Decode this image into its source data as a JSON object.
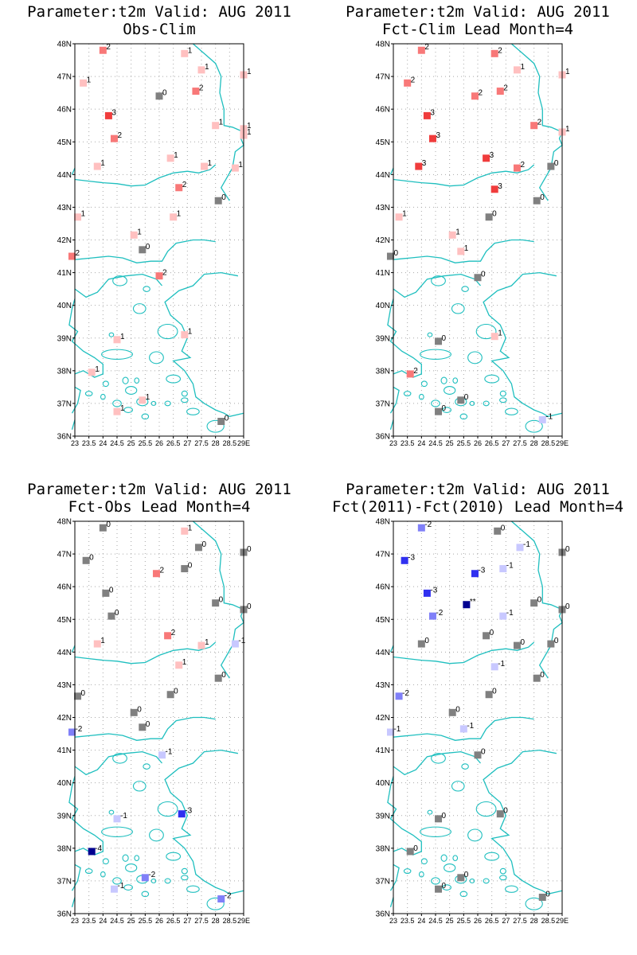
{
  "lat_labels": [
    "36N",
    "37N",
    "38N",
    "39N",
    "40N",
    "41N",
    "42N",
    "43N",
    "44N",
    "45N",
    "46N",
    "47N",
    "48N"
  ],
  "lon_labels": [
    "23",
    "23.5",
    "24",
    "24.5",
    "25",
    "25.5",
    "26",
    "26.5",
    "27",
    "27.5",
    "28",
    "28.5",
    "29E"
  ],
  "colors": {
    "coast": "#1fbfbf",
    "zero": "#808080",
    "pos1": "#ffc0c0",
    "pos2": "#f87878",
    "pos3": "#f03c3c",
    "neg1": "#c8c8ff",
    "neg2": "#8080f8",
    "neg3": "#3030f0",
    "neg4": "#000090"
  },
  "panels": [
    {
      "title": "Parameter:t2m Valid: AUG 2011",
      "subtitle": "Obs-Clim",
      "stations": [
        {
          "lon": 24.0,
          "lat": 47.8,
          "label": "2",
          "value": 2
        },
        {
          "lon": 26.9,
          "lat": 47.7,
          "label": "1",
          "value": 1
        },
        {
          "lon": 27.5,
          "lat": 47.2,
          "label": "1",
          "value": 1
        },
        {
          "lon": 29.0,
          "lat": 47.05,
          "label": "1",
          "value": 1
        },
        {
          "lon": 23.3,
          "lat": 46.8,
          "label": "1",
          "value": 1
        },
        {
          "lon": 26.0,
          "lat": 46.4,
          "label": "0",
          "value": 0
        },
        {
          "lon": 27.3,
          "lat": 46.55,
          "label": "2",
          "value": 2
        },
        {
          "lon": 24.2,
          "lat": 45.8,
          "label": "3",
          "value": 3
        },
        {
          "lon": 29.0,
          "lat": 45.4,
          "label": "1",
          "value": 1
        },
        {
          "lon": 28.0,
          "lat": 45.5,
          "label": "1",
          "value": 1
        },
        {
          "lon": 24.4,
          "lat": 45.1,
          "label": "2",
          "value": 2
        },
        {
          "lon": 29.0,
          "lat": 45.2,
          "label": "1",
          "value": 1
        },
        {
          "lon": 23.8,
          "lat": 44.25,
          "label": "1",
          "value": 1
        },
        {
          "lon": 26.4,
          "lat": 44.5,
          "label": "1",
          "value": 1
        },
        {
          "lon": 27.6,
          "lat": 44.25,
          "label": "1",
          "value": 1
        },
        {
          "lon": 28.7,
          "lat": 44.2,
          "label": "1",
          "value": 1
        },
        {
          "lon": 26.7,
          "lat": 43.6,
          "label": "2",
          "value": 2
        },
        {
          "lon": 28.1,
          "lat": 43.2,
          "label": "0",
          "value": 0
        },
        {
          "lon": 23.1,
          "lat": 42.7,
          "label": "1",
          "value": 1
        },
        {
          "lon": 26.5,
          "lat": 42.7,
          "label": "1",
          "value": 1
        },
        {
          "lon": 25.1,
          "lat": 42.15,
          "label": "1",
          "value": 1
        },
        {
          "lon": 25.4,
          "lat": 41.7,
          "label": "0",
          "value": 0
        },
        {
          "lon": 22.9,
          "lat": 41.5,
          "label": "2",
          "value": 2
        },
        {
          "lon": 26.0,
          "lat": 40.9,
          "label": "2",
          "value": 2
        },
        {
          "lon": 24.5,
          "lat": 38.95,
          "label": "1",
          "value": 1
        },
        {
          "lon": 26.9,
          "lat": 39.1,
          "label": "1",
          "value": 1
        },
        {
          "lon": 23.6,
          "lat": 37.95,
          "label": "1",
          "value": 1
        },
        {
          "lon": 25.4,
          "lat": 37.1,
          "label": "1",
          "value": 1
        },
        {
          "lon": 24.5,
          "lat": 36.75,
          "label": "1",
          "value": 1
        },
        {
          "lon": 28.2,
          "lat": 36.45,
          "label": "0",
          "value": 0
        }
      ]
    },
    {
      "title": "Parameter:t2m Valid: AUG 2011",
      "subtitle": "Fct-Clim Lead Month=4",
      "stations": [
        {
          "lon": 24.0,
          "lat": 47.8,
          "label": "2",
          "value": 2
        },
        {
          "lon": 26.6,
          "lat": 47.7,
          "label": "2",
          "value": 2
        },
        {
          "lon": 27.4,
          "lat": 47.2,
          "label": "1",
          "value": 1
        },
        {
          "lon": 29.0,
          "lat": 47.05,
          "label": "1",
          "value": 1
        },
        {
          "lon": 23.5,
          "lat": 46.8,
          "label": "2",
          "value": 2
        },
        {
          "lon": 25.9,
          "lat": 46.4,
          "label": "2",
          "value": 2
        },
        {
          "lon": 26.8,
          "lat": 46.55,
          "label": "2",
          "value": 2
        },
        {
          "lon": 24.2,
          "lat": 45.8,
          "label": "3",
          "value": 3
        },
        {
          "lon": 28.0,
          "lat": 45.5,
          "label": "2",
          "value": 2
        },
        {
          "lon": 29.0,
          "lat": 45.3,
          "label": "1",
          "value": 1
        },
        {
          "lon": 24.4,
          "lat": 45.1,
          "label": "3",
          "value": 3
        },
        {
          "lon": 23.9,
          "lat": 44.25,
          "label": "3",
          "value": 3
        },
        {
          "lon": 26.3,
          "lat": 44.5,
          "label": "3",
          "value": 3
        },
        {
          "lon": 27.4,
          "lat": 44.2,
          "label": "2",
          "value": 2
        },
        {
          "lon": 28.6,
          "lat": 44.25,
          "label": "0",
          "value": 0
        },
        {
          "lon": 26.6,
          "lat": 43.55,
          "label": "3",
          "value": 3
        },
        {
          "lon": 28.1,
          "lat": 43.2,
          "label": "0",
          "value": 0
        },
        {
          "lon": 23.2,
          "lat": 42.7,
          "label": "1",
          "value": 1
        },
        {
          "lon": 26.4,
          "lat": 42.7,
          "label": "0",
          "value": 0
        },
        {
          "lon": 25.1,
          "lat": 42.15,
          "label": "1",
          "value": 1
        },
        {
          "lon": 25.4,
          "lat": 41.65,
          "label": "1",
          "value": 1
        },
        {
          "lon": 22.9,
          "lat": 41.5,
          "label": "0",
          "value": 0
        },
        {
          "lon": 26.0,
          "lat": 40.85,
          "label": "0",
          "value": 0
        },
        {
          "lon": 24.6,
          "lat": 38.9,
          "label": "0",
          "value": 0
        },
        {
          "lon": 26.6,
          "lat": 39.05,
          "label": "1",
          "value": 1
        },
        {
          "lon": 23.6,
          "lat": 37.9,
          "label": "2",
          "value": 2
        },
        {
          "lon": 25.4,
          "lat": 37.1,
          "label": "0",
          "value": 0
        },
        {
          "lon": 24.6,
          "lat": 36.75,
          "label": "0",
          "value": 0
        },
        {
          "lon": 28.3,
          "lat": 36.5,
          "label": "-1",
          "value": -1
        }
      ]
    },
    {
      "title": "Parameter:t2m Valid: AUG 2011",
      "subtitle": "Fct-Obs Lead Month=4",
      "stations": [
        {
          "lon": 24.0,
          "lat": 47.8,
          "label": "0",
          "value": 0
        },
        {
          "lon": 26.9,
          "lat": 47.7,
          "label": "1",
          "value": 1
        },
        {
          "lon": 27.4,
          "lat": 47.2,
          "label": "0",
          "value": 0
        },
        {
          "lon": 29.0,
          "lat": 47.05,
          "label": "0",
          "value": 0
        },
        {
          "lon": 23.4,
          "lat": 46.8,
          "label": "0",
          "value": 0
        },
        {
          "lon": 25.9,
          "lat": 46.4,
          "label": "2",
          "value": 2
        },
        {
          "lon": 26.9,
          "lat": 46.55,
          "label": "0",
          "value": 0
        },
        {
          "lon": 24.1,
          "lat": 45.8,
          "label": "0",
          "value": 0
        },
        {
          "lon": 28.0,
          "lat": 45.5,
          "label": "0",
          "value": 0
        },
        {
          "lon": 29.0,
          "lat": 45.3,
          "label": "0",
          "value": 0
        },
        {
          "lon": 24.3,
          "lat": 45.1,
          "label": "0",
          "value": 0
        },
        {
          "lon": 23.8,
          "lat": 44.25,
          "label": "1",
          "value": 1
        },
        {
          "lon": 26.3,
          "lat": 44.5,
          "label": "2",
          "value": 2
        },
        {
          "lon": 27.5,
          "lat": 44.2,
          "label": "1",
          "value": 1
        },
        {
          "lon": 28.7,
          "lat": 44.25,
          "label": "-1",
          "value": -1
        },
        {
          "lon": 26.7,
          "lat": 43.6,
          "label": "1",
          "value": 1
        },
        {
          "lon": 28.1,
          "lat": 43.2,
          "label": "0",
          "value": 0
        },
        {
          "lon": 23.1,
          "lat": 42.65,
          "label": "0",
          "value": 0
        },
        {
          "lon": 26.4,
          "lat": 42.7,
          "label": "0",
          "value": 0
        },
        {
          "lon": 25.1,
          "lat": 42.15,
          "label": "0",
          "value": 0
        },
        {
          "lon": 25.4,
          "lat": 41.7,
          "label": "0",
          "value": 0
        },
        {
          "lon": 22.9,
          "lat": 41.55,
          "label": "-2",
          "value": -2
        },
        {
          "lon": 26.1,
          "lat": 40.85,
          "label": "-1",
          "value": -1
        },
        {
          "lon": 24.5,
          "lat": 38.9,
          "label": "-1",
          "value": -1
        },
        {
          "lon": 26.8,
          "lat": 39.05,
          "label": "-3",
          "value": -3
        },
        {
          "lon": 23.6,
          "lat": 37.9,
          "label": "-4",
          "value": -4
        },
        {
          "lon": 25.5,
          "lat": 37.1,
          "label": "-2",
          "value": -2
        },
        {
          "lon": 24.4,
          "lat": 36.75,
          "label": "-1",
          "value": -1
        },
        {
          "lon": 28.2,
          "lat": 36.45,
          "label": "-2",
          "value": -2
        }
      ]
    },
    {
      "title": "Parameter:t2m Valid: AUG 2011",
      "subtitle": "Fct(2011)-Fct(2010) Lead Month=4",
      "stations": [
        {
          "lon": 24.0,
          "lat": 47.8,
          "label": "-2",
          "value": -2
        },
        {
          "lon": 26.7,
          "lat": 47.7,
          "label": "0",
          "value": 0
        },
        {
          "lon": 27.5,
          "lat": 47.2,
          "label": "-1",
          "value": -1
        },
        {
          "lon": 29.0,
          "lat": 47.05,
          "label": "0",
          "value": 0
        },
        {
          "lon": 23.4,
          "lat": 46.8,
          "label": "-3",
          "value": -3
        },
        {
          "lon": 25.9,
          "lat": 46.4,
          "label": "-3",
          "value": -3
        },
        {
          "lon": 26.9,
          "lat": 46.55,
          "label": "-1",
          "value": -1
        },
        {
          "lon": 24.2,
          "lat": 45.8,
          "label": "-3",
          "value": -3
        },
        {
          "lon": 25.6,
          "lat": 45.45,
          "label": "**",
          "value": -4
        },
        {
          "lon": 28.0,
          "lat": 45.5,
          "label": "0",
          "value": 0
        },
        {
          "lon": 29.0,
          "lat": 45.3,
          "label": "0",
          "value": 0
        },
        {
          "lon": 24.4,
          "lat": 45.1,
          "label": "-2",
          "value": -2
        },
        {
          "lon": 26.9,
          "lat": 45.1,
          "label": "-1",
          "value": -1
        },
        {
          "lon": 24.0,
          "lat": 44.25,
          "label": "0",
          "value": 0
        },
        {
          "lon": 26.3,
          "lat": 44.5,
          "label": "0",
          "value": 0
        },
        {
          "lon": 27.4,
          "lat": 44.2,
          "label": "0",
          "value": 0
        },
        {
          "lon": 28.6,
          "lat": 44.25,
          "label": "0",
          "value": 0
        },
        {
          "lon": 26.6,
          "lat": 43.55,
          "label": "-1",
          "value": -1
        },
        {
          "lon": 28.1,
          "lat": 43.2,
          "label": "0",
          "value": 0
        },
        {
          "lon": 23.2,
          "lat": 42.65,
          "label": "-2",
          "value": -2
        },
        {
          "lon": 26.4,
          "lat": 42.7,
          "label": "0",
          "value": 0
        },
        {
          "lon": 25.1,
          "lat": 42.15,
          "label": "0",
          "value": 0
        },
        {
          "lon": 25.5,
          "lat": 41.65,
          "label": "-1",
          "value": -1
        },
        {
          "lon": 22.9,
          "lat": 41.55,
          "label": "-1",
          "value": -1
        },
        {
          "lon": 26.0,
          "lat": 40.85,
          "label": "0",
          "value": 0
        },
        {
          "lon": 24.6,
          "lat": 38.9,
          "label": "0",
          "value": 0
        },
        {
          "lon": 26.8,
          "lat": 39.05,
          "label": "0",
          "value": 0
        },
        {
          "lon": 23.6,
          "lat": 37.9,
          "label": "0",
          "value": 0
        },
        {
          "lon": 25.4,
          "lat": 37.1,
          "label": "0",
          "value": 0
        },
        {
          "lon": 24.6,
          "lat": 36.75,
          "label": "0",
          "value": 0
        },
        {
          "lon": 28.3,
          "lat": 36.5,
          "label": "0",
          "value": 0
        }
      ]
    }
  ]
}
